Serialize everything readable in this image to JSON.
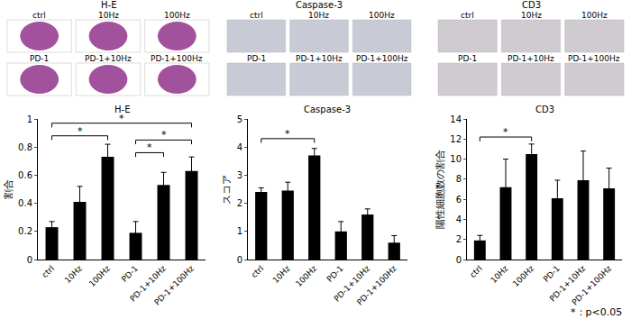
{
  "chart_data": [
    {
      "type": "bar",
      "title": "H-E",
      "y_label": "割合",
      "categories": [
        "ctrl",
        "10Hz",
        "100Hz",
        "PD-1",
        "PD-1+10Hz",
        "PD-1+100Hz"
      ],
      "values": [
        0.23,
        0.41,
        0.73,
        0.19,
        0.53,
        0.63
      ],
      "errors": [
        0.04,
        0.11,
        0.09,
        0.08,
        0.09,
        0.1
      ],
      "color": "#000000",
      "ylim": [
        0,
        1
      ],
      "yticks": [
        0,
        0.2,
        0.4,
        0.6,
        0.8,
        1
      ],
      "grid": false,
      "annotations": [
        {
          "text": "*",
          "from": "ctrl",
          "to": "100Hz",
          "y": 0.88
        },
        {
          "text": "*",
          "from": "ctrl",
          "to": "PD-1+100Hz",
          "y": 0.97
        },
        {
          "text": "*",
          "from": "PD-1",
          "to": "PD-1+10Hz",
          "y": 0.76
        },
        {
          "text": "*",
          "from": "PD-1",
          "to": "PD-1+100Hz",
          "y": 0.85
        }
      ]
    },
    {
      "type": "bar",
      "title": "Caspase-3",
      "y_label": "スコア",
      "categories": [
        "ctrl",
        "10Hz",
        "100Hz",
        "PD-1",
        "PD-1+10Hz",
        "PD-1+100Hz"
      ],
      "values": [
        2.4,
        2.45,
        3.7,
        1.0,
        1.6,
        0.6
      ],
      "errors": [
        0.15,
        0.3,
        0.25,
        0.35,
        0.2,
        0.25
      ],
      "color": "#000000",
      "ylim": [
        0,
        5
      ],
      "yticks": [
        0,
        1,
        2,
        3,
        4,
        5
      ],
      "grid": false,
      "annotations": [
        {
          "text": "*",
          "from": "ctrl",
          "to": "100Hz",
          "y": 4.3
        }
      ]
    },
    {
      "type": "bar",
      "title": "CD3",
      "y_label": "陽性細胞数の割合",
      "categories": [
        "ctrl",
        "10Hz",
        "100Hz",
        "PD-1",
        "PD-1+10Hz",
        "PD-1+100Hz"
      ],
      "values": [
        1.9,
        7.2,
        10.5,
        6.1,
        7.9,
        7.1
      ],
      "errors": [
        0.5,
        2.8,
        1.0,
        1.8,
        2.9,
        2.0
      ],
      "color": "#000000",
      "ylim": [
        0,
        14
      ],
      "yticks": [
        0,
        2,
        4,
        6,
        8,
        10,
        12,
        14
      ],
      "grid": false,
      "annotations": [
        {
          "text": "*",
          "from": "ctrl",
          "to": "100Hz",
          "y": 12.2
        }
      ]
    }
  ],
  "image_panels": [
    {
      "title": "H-E",
      "labels": [
        "ctrl",
        "10Hz",
        "100Hz",
        "PD-1",
        "PD-1+10Hz",
        "PD-1+100Hz"
      ]
    },
    {
      "title": "Caspase-3",
      "labels": [
        "ctrl",
        "10Hz",
        "100Hz",
        "PD-1",
        "PD-1+10Hz",
        "PD-1+100Hz"
      ]
    },
    {
      "title": "CD3",
      "labels": [
        "ctrl",
        "10Hz",
        "100Hz",
        "PD-1",
        "PD-1+10Hz",
        "PD-1+100Hz"
      ]
    }
  ],
  "footnote": "*：p<0.05"
}
